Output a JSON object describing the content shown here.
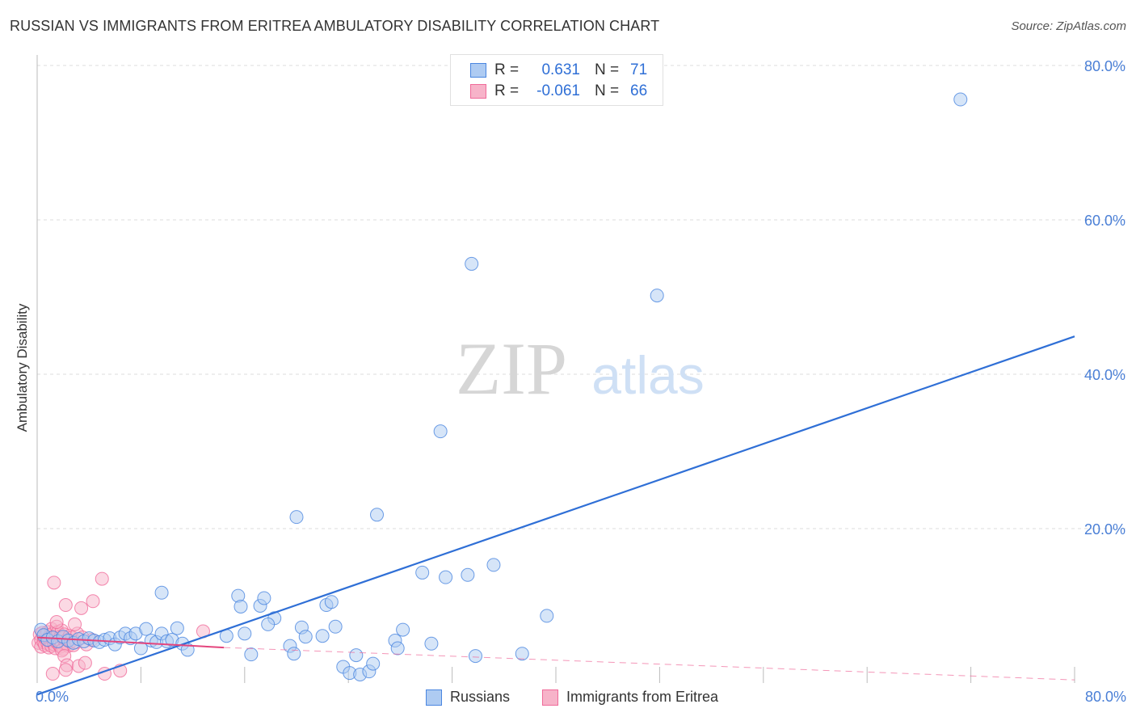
{
  "title": "RUSSIAN VS IMMIGRANTS FROM ERITREA AMBULATORY DISABILITY CORRELATION CHART",
  "source": "Source: ZipAtlas.com",
  "watermark": {
    "zip": "ZIP",
    "atlas": "atlas"
  },
  "colors": {
    "blue": "#4a86e0",
    "blue_fill": "#aecbf2",
    "pink": "#f06a9a",
    "pink_fill": "#f7b3c9",
    "grid": "#dddddd",
    "tick_text": "#4a7fd6"
  },
  "stats": [
    {
      "r_label": "R =",
      "r_value": "0.631",
      "n_label": "N =",
      "n_value": "71"
    },
    {
      "r_label": "R =",
      "r_value": "-0.061",
      "n_label": "N =",
      "n_value": "66"
    }
  ],
  "legend": [
    {
      "label": "Russians"
    },
    {
      "label": "Immigrants from Eritrea"
    }
  ],
  "chart_data": {
    "type": "scatter",
    "title": "RUSSIAN VS IMMIGRANTS FROM ERITREA AMBULATORY DISABILITY CORRELATION CHART",
    "xlabel": "",
    "ylabel": "Ambulatory Disability",
    "xlim": [
      0,
      80
    ],
    "ylim": [
      0,
      80
    ],
    "x_tick_labels": {
      "min": "0.0%",
      "max": "80.0%"
    },
    "y_ticks": [
      {
        "value": 20,
        "label": "20.0%"
      },
      {
        "value": 40,
        "label": "40.0%"
      },
      {
        "value": 60,
        "label": "60.0%"
      },
      {
        "value": 80,
        "label": "80.0%"
      }
    ],
    "series": [
      {
        "name": "Russians",
        "r": 0.631,
        "n": 71,
        "trend": {
          "x": [
            0,
            80
          ],
          "y": [
            -1.5,
            44.9
          ],
          "style": "solid"
        },
        "points": [
          [
            0.3,
            6.9
          ],
          [
            0.5,
            6.2
          ],
          [
            0.8,
            5.6
          ],
          [
            1.2,
            5.9
          ],
          [
            1.6,
            5.4
          ],
          [
            2.0,
            6.0
          ],
          [
            2.4,
            5.5
          ],
          [
            2.8,
            5.2
          ],
          [
            3.2,
            5.7
          ],
          [
            3.6,
            5.4
          ],
          [
            4.0,
            5.8
          ],
          [
            4.4,
            5.5
          ],
          [
            4.8,
            5.3
          ],
          [
            5.2,
            5.6
          ],
          [
            5.6,
            5.8
          ],
          [
            6.0,
            5.0
          ],
          [
            6.4,
            5.9
          ],
          [
            6.8,
            6.4
          ],
          [
            7.2,
            5.8
          ],
          [
            7.6,
            6.4
          ],
          [
            8.0,
            4.5
          ],
          [
            8.4,
            7.0
          ],
          [
            8.8,
            5.5
          ],
          [
            9.2,
            5.3
          ],
          [
            9.6,
            6.4
          ],
          [
            10.0,
            5.4
          ],
          [
            10.4,
            5.6
          ],
          [
            10.8,
            7.1
          ],
          [
            11.2,
            5.1
          ],
          [
            11.6,
            4.3
          ],
          [
            9.6,
            11.7
          ],
          [
            15.5,
            11.3
          ],
          [
            15.7,
            9.9
          ],
          [
            17.2,
            10.0
          ],
          [
            17.5,
            11.0
          ],
          [
            18.3,
            8.4
          ],
          [
            17.8,
            7.6
          ],
          [
            16.0,
            6.4
          ],
          [
            14.6,
            6.1
          ],
          [
            16.5,
            3.7
          ],
          [
            19.5,
            4.8
          ],
          [
            19.8,
            3.8
          ],
          [
            20.4,
            7.2
          ],
          [
            20.7,
            6.0
          ],
          [
            22.0,
            6.1
          ],
          [
            22.3,
            10.1
          ],
          [
            22.7,
            10.5
          ],
          [
            23.0,
            7.3
          ],
          [
            23.6,
            2.1
          ],
          [
            24.1,
            1.3
          ],
          [
            24.6,
            3.6
          ],
          [
            24.9,
            1.1
          ],
          [
            25.6,
            1.5
          ],
          [
            25.9,
            2.5
          ],
          [
            27.6,
            5.5
          ],
          [
            27.8,
            4.5
          ],
          [
            28.2,
            6.9
          ],
          [
            29.7,
            14.3
          ],
          [
            30.4,
            5.1
          ],
          [
            31.5,
            13.7
          ],
          [
            33.2,
            14.0
          ],
          [
            33.8,
            3.5
          ],
          [
            35.2,
            15.3
          ],
          [
            37.4,
            3.8
          ],
          [
            39.3,
            8.7
          ],
          [
            20.0,
            21.5
          ],
          [
            26.2,
            21.8
          ],
          [
            31.1,
            32.6
          ],
          [
            33.5,
            54.3
          ],
          [
            47.8,
            50.2
          ],
          [
            71.2,
            75.6
          ]
        ]
      },
      {
        "name": "Immigrants from Eritrea",
        "r": -0.061,
        "n": 66,
        "trend": {
          "x": [
            0,
            14.4
          ],
          "y": [
            5.9,
            4.6
          ],
          "style": "solid",
          "extension": {
            "x": [
              14.4,
              80
            ],
            "y": [
              4.6,
              0.4
            ],
            "style": "dashed"
          }
        },
        "points": [
          [
            0.1,
            5.2
          ],
          [
            0.2,
            6.3
          ],
          [
            0.3,
            5.6
          ],
          [
            0.3,
            4.7
          ],
          [
            0.4,
            6.5
          ],
          [
            0.5,
            5.3
          ],
          [
            0.5,
            6.0
          ],
          [
            0.6,
            4.9
          ],
          [
            0.7,
            5.7
          ],
          [
            0.7,
            6.3
          ],
          [
            0.8,
            5.1
          ],
          [
            0.8,
            6.6
          ],
          [
            0.9,
            4.6
          ],
          [
            0.9,
            5.9
          ],
          [
            1.0,
            5.4
          ],
          [
            1.0,
            6.2
          ],
          [
            1.1,
            4.8
          ],
          [
            1.1,
            7.0
          ],
          [
            1.2,
            5.6
          ],
          [
            1.2,
            6.4
          ],
          [
            1.3,
            5.0
          ],
          [
            1.3,
            5.8
          ],
          [
            1.4,
            4.5
          ],
          [
            1.4,
            6.1
          ],
          [
            1.5,
            5.3
          ],
          [
            1.5,
            7.3
          ],
          [
            1.6,
            5.7
          ],
          [
            1.6,
            6.6
          ],
          [
            1.7,
            4.9
          ],
          [
            1.7,
            5.5
          ],
          [
            1.8,
            6.0
          ],
          [
            1.8,
            4.7
          ],
          [
            1.9,
            5.2
          ],
          [
            1.9,
            6.8
          ],
          [
            2.0,
            5.8
          ],
          [
            2.0,
            4.4
          ],
          [
            2.1,
            6.3
          ],
          [
            2.2,
            5.1
          ],
          [
            2.3,
            5.6
          ],
          [
            2.4,
            4.8
          ],
          [
            2.5,
            6.1
          ],
          [
            2.6,
            5.4
          ],
          [
            2.7,
            5.9
          ],
          [
            2.8,
            4.9
          ],
          [
            3.0,
            5.3
          ],
          [
            3.1,
            6.4
          ],
          [
            1.3,
            13.0
          ],
          [
            2.2,
            10.1
          ],
          [
            3.4,
            9.7
          ],
          [
            4.3,
            10.6
          ],
          [
            5.0,
            13.5
          ],
          [
            2.9,
            7.6
          ],
          [
            1.5,
            7.9
          ],
          [
            1.9,
            4.2
          ],
          [
            2.1,
            3.5
          ],
          [
            2.3,
            2.3
          ],
          [
            1.2,
            1.2
          ],
          [
            2.2,
            1.7
          ],
          [
            3.2,
            2.2
          ],
          [
            3.7,
            2.6
          ],
          [
            5.2,
            1.2
          ],
          [
            6.4,
            1.6
          ],
          [
            3.8,
            5.0
          ],
          [
            4.2,
            5.6
          ],
          [
            12.8,
            6.7
          ],
          [
            3.5,
            5.9
          ]
        ]
      }
    ]
  }
}
